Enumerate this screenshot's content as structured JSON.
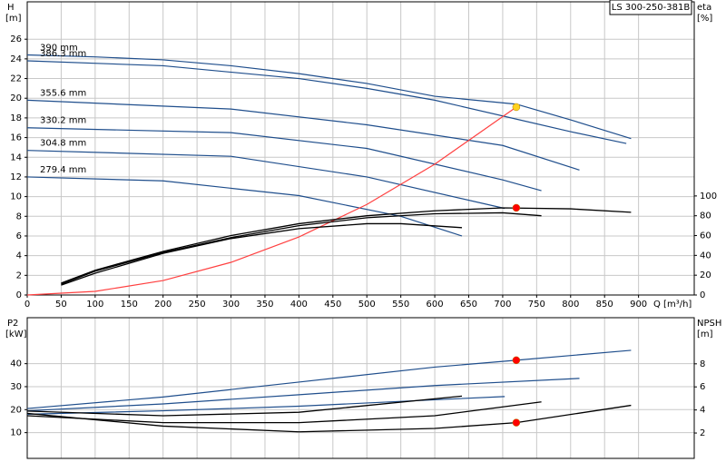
{
  "chart_data": [
    {
      "type": "line",
      "title": "LS 300-250-381B",
      "y_label": "H",
      "y_unit": "[m]",
      "y2_label": "eta",
      "y2_unit": "[%]",
      "x_label": "Q [m³/h]",
      "xlim": [
        0,
        982
      ],
      "xticks": [
        0,
        50,
        100,
        150,
        200,
        250,
        300,
        350,
        400,
        450,
        500,
        550,
        600,
        650,
        700,
        750,
        800,
        850,
        900
      ],
      "ylim": [
        0,
        29.8
      ],
      "yticks": [
        0,
        2,
        4,
        6,
        8,
        10,
        12,
        14,
        16,
        18,
        20,
        22,
        24,
        26
      ],
      "y2lim": [
        0,
        296
      ],
      "y2ticks": [
        0,
        20,
        40,
        60,
        80,
        100
      ],
      "grid": true,
      "series": [
        {
          "name": "390 mm",
          "color": "#1f4e8c",
          "x": [
            0,
            100,
            200,
            300,
            400,
            500,
            600,
            720,
            800,
            889
          ],
          "values": [
            24.4,
            24.2,
            23.9,
            23.3,
            22.5,
            21.5,
            20.2,
            19.4,
            17.8,
            15.9
          ]
        },
        {
          "name": "386.3 mm",
          "color": "#1f4e8c",
          "x": [
            0,
            200,
            400,
            500,
            600,
            700,
            800,
            882
          ],
          "values": [
            23.8,
            23.3,
            22.0,
            21.0,
            19.8,
            18.2,
            16.6,
            15.4
          ]
        },
        {
          "name": "355.6 mm",
          "color": "#1f4e8c",
          "x": [
            0,
            300,
            500,
            700,
            813
          ],
          "values": [
            19.8,
            18.9,
            17.3,
            15.2,
            12.7
          ]
        },
        {
          "name": "330.2 mm",
          "color": "#1f4e8c",
          "x": [
            0,
            300,
            500,
            700,
            757
          ],
          "values": [
            17.0,
            16.5,
            14.9,
            11.7,
            10.6
          ]
        },
        {
          "name": "304.8 mm",
          "color": "#1f4e8c",
          "x": [
            0,
            300,
            500,
            703
          ],
          "values": [
            14.7,
            14.1,
            12.0,
            8.8
          ]
        },
        {
          "name": "279.4 mm",
          "color": "#1f4e8c",
          "x": [
            0,
            200,
            400,
            550,
            640
          ],
          "values": [
            12.0,
            11.6,
            10.1,
            8.0,
            6.0
          ]
        },
        {
          "color": "#ff4040",
          "x": [
            0,
            100,
            200,
            300,
            400,
            500,
            600,
            720
          ],
          "values": [
            0,
            0.37,
            1.47,
            3.32,
            5.9,
            9.2,
            13.3,
            19.1
          ]
        },
        {
          "color": "#000000",
          "axis": "y2",
          "x": [
            50,
            100,
            200,
            300,
            400,
            500,
            600,
            700,
            800,
            889
          ],
          "values": [
            12,
            25,
            44,
            60,
            72,
            80,
            85,
            88,
            87,
            83.5
          ]
        },
        {
          "color": "#000000",
          "axis": "y2",
          "x": [
            50,
            100,
            200,
            300,
            400,
            500,
            600,
            700,
            757
          ],
          "values": [
            11,
            24,
            43,
            58,
            70,
            78,
            82,
            83,
            80
          ]
        },
        {
          "color": "#000000",
          "axis": "y2",
          "x": [
            50,
            100,
            200,
            300,
            400,
            500,
            550,
            640
          ],
          "values": [
            10,
            22,
            42,
            57,
            67,
            72,
            72,
            68
          ]
        }
      ],
      "points": [
        {
          "x": 720,
          "y": 19.1,
          "color": "#ffd21f"
        },
        {
          "x": 720,
          "y": 88,
          "axis": "y2",
          "color": "#ff0000"
        }
      ]
    },
    {
      "type": "line",
      "y_label": "P2",
      "y_unit": "[kW]",
      "y2_label": "NPSH",
      "y2_unit": "[m]",
      "xlim": [
        0,
        982
      ],
      "ylim": [
        -1.2,
        60
      ],
      "yticks": [
        10,
        20,
        30,
        40
      ],
      "y2lim": [
        -0.2,
        12
      ],
      "y2ticks": [
        2,
        4,
        6,
        8
      ],
      "grid": true,
      "series": [
        {
          "color": "#1f4e8c",
          "x": [
            0,
            200,
            400,
            600,
            720,
            889
          ],
          "values": [
            20.5,
            25.5,
            32,
            38.5,
            41.5,
            45.8
          ]
        },
        {
          "color": "#1f4e8c",
          "x": [
            0,
            200,
            400,
            600,
            813
          ],
          "values": [
            19.5,
            22.5,
            26.5,
            30.5,
            33.6
          ]
        },
        {
          "color": "#1f4e8c",
          "x": [
            0,
            200,
            400,
            600,
            703
          ],
          "values": [
            18,
            19.5,
            21.5,
            24.3,
            25.7
          ]
        },
        {
          "color": "#000000",
          "axis": "y2",
          "x": [
            0,
            200,
            400,
            600,
            720,
            889
          ],
          "values": [
            3.7,
            2.6,
            2.1,
            2.4,
            2.9,
            4.4
          ]
        },
        {
          "color": "#000000",
          "axis": "y2",
          "x": [
            0,
            200,
            400,
            600,
            757
          ],
          "values": [
            3.5,
            2.9,
            2.9,
            3.5,
            4.7
          ]
        },
        {
          "color": "#000000",
          "axis": "y2",
          "x": [
            0,
            200,
            400,
            640
          ],
          "values": [
            3.9,
            3.5,
            3.8,
            5.2
          ]
        }
      ],
      "points": [
        {
          "x": 720,
          "y": 41.5,
          "color": "#ff0000"
        },
        {
          "x": 720,
          "y": 2.9,
          "axis": "y2",
          "color": "#ff0000"
        }
      ]
    }
  ]
}
